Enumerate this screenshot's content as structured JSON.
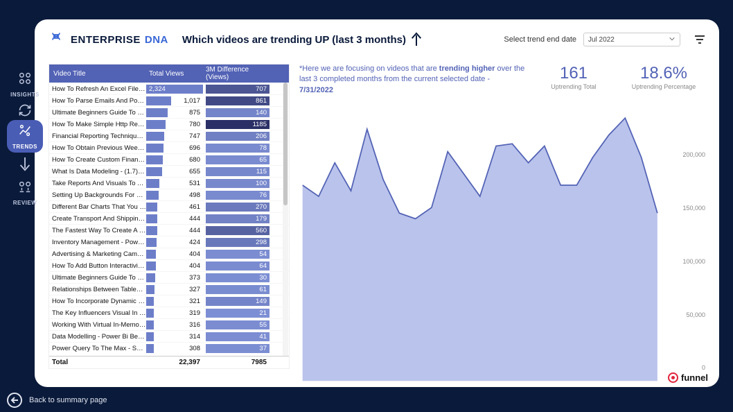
{
  "brand": {
    "name1": "ENTERPRISE",
    "name2": "DNA"
  },
  "page_title": "Which videos are trending UP (last 3 months)",
  "date_selector": {
    "label": "Select trend end date",
    "value": "Jul 2022"
  },
  "sidebar": {
    "items": [
      {
        "label": "INSIGHTS"
      },
      {
        "label": "TRENDS"
      },
      {
        "label": "REVIEW"
      }
    ]
  },
  "table": {
    "headers": {
      "title": "Video Title",
      "views": "Total Views",
      "diff": "3M Difference (Views)"
    },
    "max_views": 2324,
    "diff_range": {
      "min": 20,
      "max": 1185
    },
    "diff_colors": {
      "light": "#7d8fd4",
      "dark": "#2a2f66"
    },
    "rows": [
      {
        "title": "How To Refresh An Excel File In ...",
        "views": 2324,
        "diff": 707
      },
      {
        "title": "How To Parse Emails And Popul...",
        "views": 1017,
        "diff": 861
      },
      {
        "title": "Ultimate Beginners Guide To Po...",
        "views": 875,
        "diff": 140
      },
      {
        "title": "How To Make Simple Http Requ...",
        "views": 780,
        "diff": 1185
      },
      {
        "title": "Financial Reporting Techniques ...",
        "views": 747,
        "diff": 206
      },
      {
        "title": "How To Obtain Previous Week V...",
        "views": 696,
        "diff": 78
      },
      {
        "title": "How To Create Custom Financial...",
        "views": 680,
        "diff": 65
      },
      {
        "title": "What Is Data Modeling - (1.7) Ul...",
        "views": 655,
        "diff": 115
      },
      {
        "title": "Take Reports And Visuals To An...",
        "views": 531,
        "diff": 100
      },
      {
        "title": "Setting Up Backgrounds For Po...",
        "views": 498,
        "diff": 76
      },
      {
        "title": "Different Bar Charts That You Ca...",
        "views": 461,
        "diff": 270
      },
      {
        "title": "Create Transport And Shipping ...",
        "views": 444,
        "diff": 179
      },
      {
        "title": "The Fastest Way To Create A Co...",
        "views": 444,
        "diff": 560
      },
      {
        "title": "Inventory Management - Power...",
        "views": 424,
        "diff": 298
      },
      {
        "title": "Advertising & Marketing Campa...",
        "views": 404,
        "diff": 54
      },
      {
        "title": "How To Add Button Interactivity...",
        "views": 404,
        "diff": 64
      },
      {
        "title": "Ultimate Beginners Guide To Po...",
        "views": 373,
        "diff": 30
      },
      {
        "title": "Relationships Between Tables - (...",
        "views": 327,
        "diff": 61
      },
      {
        "title": "How To Incorporate Dynamic C...",
        "views": 321,
        "diff": 149
      },
      {
        "title": "The Key Influencers Visual In Po...",
        "views": 319,
        "diff": 21
      },
      {
        "title": "Working With Virtual In-Memor...",
        "views": 316,
        "diff": 55
      },
      {
        "title": "Data Modelling - Power Bi Best ...",
        "views": 314,
        "diff": 41
      },
      {
        "title": "Power Query To The Max - Splitt...",
        "views": 308,
        "diff": 37
      }
    ],
    "footer": {
      "label": "Total",
      "views": "22,397",
      "diff": "7985"
    }
  },
  "description": {
    "prefix": "*Here we are focusing on videos that are ",
    "bold1": "trending higher",
    "middle": " over the last 3 completed months from the current selected date - ",
    "bold2": "7/31/2022"
  },
  "stats": {
    "total": {
      "value": "161",
      "label": "Uptrending Total"
    },
    "pct": {
      "value": "18.6%",
      "label": "Uptrending Percentage"
    }
  },
  "chart": {
    "type": "area",
    "fill_color": "#aeb9e8",
    "stroke_color": "#5262b5",
    "background": "#ffffff",
    "ylim": [
      0,
      250000
    ],
    "y_ticks": [
      0,
      50000,
      100000,
      150000,
      200000
    ],
    "y_tick_labels": [
      "0",
      "50,000",
      "100,000",
      "150,000",
      "200,000"
    ],
    "points": [
      175000,
      165000,
      195000,
      170000,
      225000,
      180000,
      150000,
      145000,
      155000,
      205000,
      185000,
      165000,
      210000,
      212000,
      195000,
      210000,
      175000,
      175000,
      200000,
      220000,
      235000,
      200000,
      150000
    ]
  },
  "footer_link": "Back to summary page",
  "funnel_brand": "funnel"
}
